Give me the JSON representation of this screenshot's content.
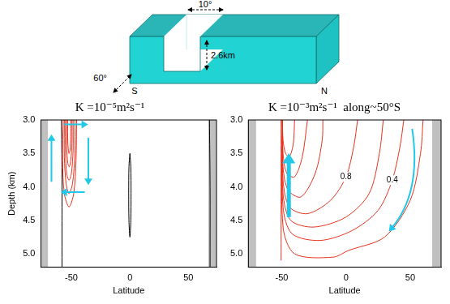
{
  "diagram": {
    "channel_width": "10°",
    "channel_depth": "2.6km",
    "zonal_extent": "60°",
    "south": "S",
    "north": "N"
  },
  "chart_data": [
    {
      "type": "contour",
      "title": "K =10⁻⁵m²s⁻¹",
      "xlabel": "Latitude",
      "ylabel": "Depth (km)",
      "xlim": [
        -76,
        74
      ],
      "ylim": [
        3.0,
        5.2
      ],
      "xticks": [
        -50,
        0,
        50
      ],
      "yticks": [
        {
          "value": 3.0,
          "label": "3.0"
        },
        {
          "value": 3.5,
          "label": "3.5"
        },
        {
          "value": 4.0,
          "label": "4.0"
        },
        {
          "value": 4.5,
          "label": "4.5"
        },
        {
          "value": 5.0,
          "label": "5.0"
        }
      ],
      "grid": false,
      "land": [
        [
          -76,
          -70
        ],
        [
          67,
          74
        ]
      ],
      "series": [
        {
          "color": "#e8321e",
          "x": [
            -57,
            -57.5,
            -56,
            -52,
            -48,
            -46,
            -45.5
          ],
          "values": [
            3.0,
            3.6,
            4.1,
            4.3,
            4.1,
            3.6,
            3.0
          ]
        },
        {
          "color": "#e8321e",
          "x": [
            -56,
            -56,
            -54.5,
            -52,
            -49,
            -47,
            -47
          ],
          "values": [
            3.0,
            3.55,
            3.95,
            4.1,
            3.95,
            3.5,
            3.0
          ]
        },
        {
          "color": "#e8321e",
          "x": [
            -55,
            -55,
            -54,
            -52,
            -50,
            -48.5,
            -48.5
          ],
          "values": [
            3.0,
            3.5,
            3.8,
            3.9,
            3.8,
            3.45,
            3.0
          ]
        },
        {
          "color": "#e8321e",
          "x": [
            -54,
            -54,
            -53,
            -51.8,
            -50.5,
            -49.5,
            -49.5
          ],
          "values": [
            3.0,
            3.4,
            3.65,
            3.7,
            3.6,
            3.35,
            3.0
          ]
        },
        {
          "color": "#e8321e",
          "x": [
            -53.2,
            -53,
            -52,
            -51.2,
            -50.6,
            -50.6
          ],
          "values": [
            3.0,
            3.35,
            3.5,
            3.45,
            3.25,
            3.0
          ]
        },
        {
          "color": "#000000",
          "x": [
            -58.5,
            -58,
            -58,
            -58
          ],
          "values": [
            3.0,
            3.8,
            4.6,
            5.2
          ]
        },
        {
          "color": "#000000",
          "x": [
            0,
            0.8,
            1,
            0.8,
            0,
            -0.8,
            -1,
            -0.8,
            0
          ],
          "values": [
            3.5,
            3.7,
            4.1,
            4.5,
            4.75,
            4.5,
            4.1,
            3.7,
            3.5
          ]
        },
        {
          "color": "#000000",
          "x": [
            68,
            68.5,
            68.5
          ],
          "values": [
            3.0,
            4.0,
            5.2
          ]
        }
      ]
    },
    {
      "type": "contour",
      "title": "K =10⁻³m²s⁻¹  along~50°S",
      "xlabel": "Latitude",
      "xlim": [
        -76,
        74
      ],
      "ylim": [
        3.0,
        5.2
      ],
      "xticks": [
        -50,
        0,
        50
      ],
      "yticks": [
        {
          "value": 3.0,
          "label": "3.0"
        },
        {
          "value": 3.5,
          "label": "3.5"
        },
        {
          "value": 4.0,
          "label": "4.0"
        },
        {
          "value": 4.5,
          "label": "4.5"
        },
        {
          "value": 5.0,
          "label": "5.0"
        }
      ],
      "grid": false,
      "land": [
        [
          -76,
          -70
        ],
        [
          67,
          74
        ]
      ],
      "series": [
        {
          "color": "#e8321e",
          "x": [
            -50.5,
            -50.5,
            -50.5
          ],
          "values": [
            3.0,
            4.0,
            5.1
          ]
        },
        {
          "color": "#e8321e",
          "x": [
            -49.5,
            -49,
            -47,
            -44,
            -41,
            -40
          ],
          "values": [
            3.0,
            3.3,
            3.5,
            3.55,
            3.35,
            3.0
          ]
        },
        {
          "color": "#e8321e",
          "x": [
            -49.5,
            -49,
            -46,
            -40,
            -34,
            -30
          ],
          "values": [
            3.0,
            3.5,
            3.8,
            3.85,
            3.55,
            3.0
          ]
        },
        {
          "color": "#e8321e",
          "x": [
            -49.5,
            -49,
            -45,
            -35,
            -24,
            -18.5,
            -18
          ],
          "values": [
            3.0,
            3.7,
            4.05,
            4.15,
            3.8,
            3.3,
            3.0
          ]
        },
        {
          "color": "#e8321e",
          "level": 0.8,
          "x": [
            -49.5,
            -49,
            -44,
            -30,
            -12,
            0,
            6,
            9
          ],
          "values": [
            3.0,
            3.9,
            4.3,
            4.4,
            4.2,
            3.85,
            3.4,
            3.0
          ]
        },
        {
          "color": "#e8321e",
          "x": [
            -49.5,
            -49,
            -43,
            -25,
            0,
            18,
            26,
            29
          ],
          "values": [
            3.0,
            4.1,
            4.5,
            4.6,
            4.45,
            4.1,
            3.5,
            3.0
          ]
        },
        {
          "color": "#e8321e",
          "level": 0.4,
          "x": [
            -49.5,
            -49,
            -42,
            -20,
            5,
            25,
            36,
            42,
            45
          ],
          "values": [
            3.0,
            4.3,
            4.7,
            4.8,
            4.65,
            4.35,
            3.9,
            3.4,
            3.0
          ]
        },
        {
          "color": "#e8321e",
          "x": [
            -49.5,
            -49,
            -40,
            -10,
            2,
            30,
            50,
            58,
            60
          ],
          "values": [
            3.0,
            4.6,
            5.0,
            5.05,
            4.95,
            4.75,
            4.2,
            3.5,
            3.0
          ]
        }
      ]
    }
  ]
}
